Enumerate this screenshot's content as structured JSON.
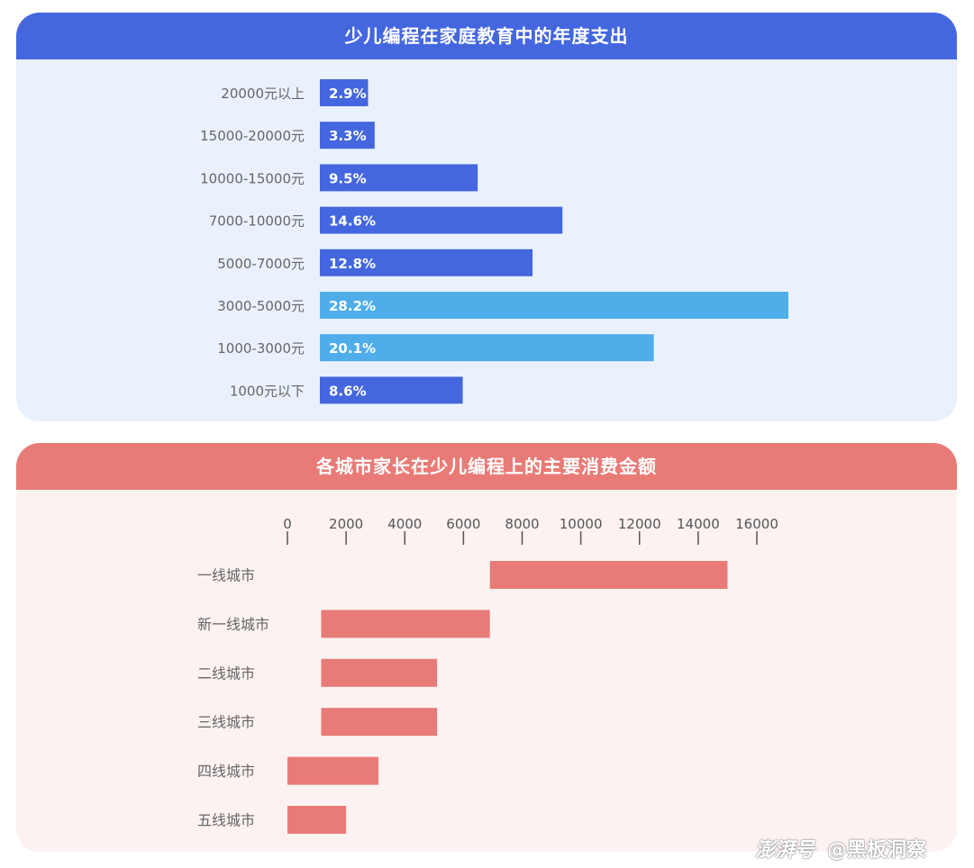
{
  "chart_data": [
    {
      "type": "bar",
      "orientation": "horizontal",
      "title": "少儿编程在家庭教育中的年度支出",
      "categories": [
        "20000元以上",
        "15000-20000元",
        "10000-15000元",
        "7000-10000元",
        "5000-7000元",
        "3000-5000元",
        "1000-3000元",
        "1000元以下"
      ],
      "values": [
        2.9,
        3.3,
        9.5,
        14.6,
        12.8,
        28.2,
        20.1,
        8.6
      ],
      "labels": [
        "2.9%",
        "3.3%",
        "9.5%",
        "14.6%",
        "12.8%",
        "28.2%",
        "20.1%",
        "8.6%"
      ],
      "unit": "%",
      "highlight_indices": [
        5,
        6
      ],
      "colors": {
        "default": "#4466df",
        "highlight": "#4fade9",
        "label": "#ffffff",
        "category": "#666666"
      },
      "grid": false
    },
    {
      "type": "bar",
      "orientation": "horizontal-floating",
      "title": "各城市家长在少儿编程上的主要消费金额",
      "categories": [
        "一线城市",
        "新一线城市",
        "二线城市",
        "三线城市",
        "四线城市",
        "五线城市"
      ],
      "ranges": [
        [
          6900,
          15000
        ],
        [
          1150,
          6900
        ],
        [
          1150,
          5100
        ],
        [
          1150,
          5100
        ],
        [
          0,
          3100
        ],
        [
          0,
          2000
        ]
      ],
      "xlim": [
        0,
        16000
      ],
      "xticks": [
        "0",
        "2000",
        "4000",
        "6000",
        "8000",
        "10000",
        "12000",
        "14000",
        "16000"
      ],
      "colors": {
        "bar": "#e87b77",
        "tick": "#555555",
        "category": "#666666"
      },
      "grid": false
    }
  ],
  "watermark": {
    "logo": "澎湃号",
    "text": "@黑板洞察"
  }
}
